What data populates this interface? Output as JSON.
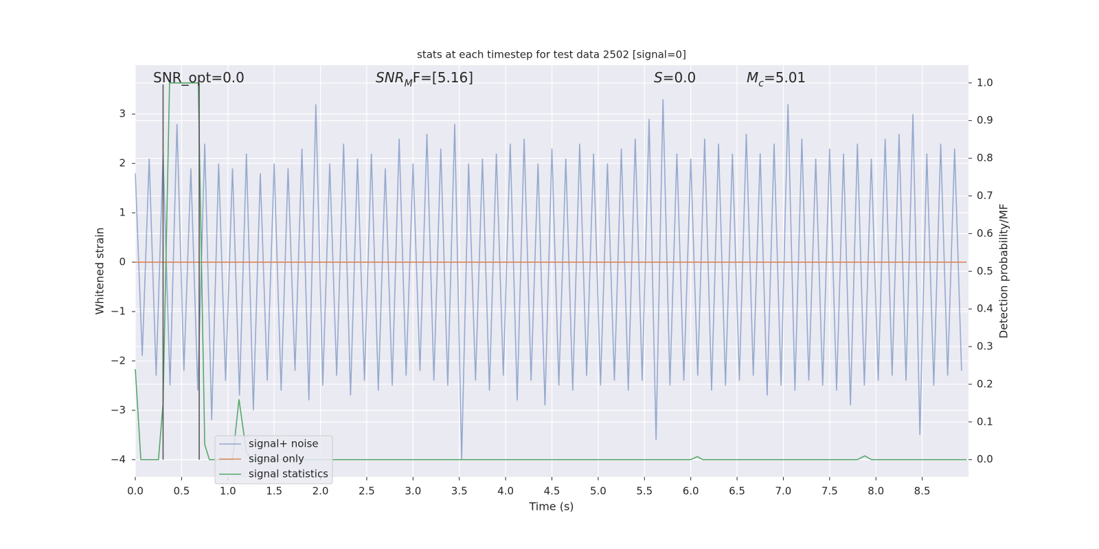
{
  "chart_data": {
    "type": "line",
    "title": "stats at each timestep for test data 2502 [signal=0]",
    "xlabel": "Time (s)",
    "ylabel": "Whitened strain",
    "y2label": "Detection probability/MF",
    "xlim": [
      0,
      9.0
    ],
    "ylim": [
      -4.35,
      3.99
    ],
    "y2lim": [
      -0.046,
      1.047
    ],
    "xticks": [
      {
        "value": 0,
        "label": "0.0"
      },
      {
        "value": 0.5,
        "label": "0.5"
      },
      {
        "value": 1,
        "label": "1.0"
      },
      {
        "value": 1.5,
        "label": "1.5"
      },
      {
        "value": 2,
        "label": "2.0"
      },
      {
        "value": 2.5,
        "label": "2.5"
      },
      {
        "value": 3,
        "label": "3.0"
      },
      {
        "value": 3.5,
        "label": "3.5"
      },
      {
        "value": 4,
        "label": "4.0"
      },
      {
        "value": 4.5,
        "label": "4.5"
      },
      {
        "value": 5,
        "label": "5.0"
      },
      {
        "value": 5.5,
        "label": "5.5"
      },
      {
        "value": 6,
        "label": "6.0"
      },
      {
        "value": 6.5,
        "label": "6.5"
      },
      {
        "value": 7,
        "label": "7.0"
      },
      {
        "value": 7.5,
        "label": "7.5"
      },
      {
        "value": 8,
        "label": "8.0"
      },
      {
        "value": 8.5,
        "label": "8.5"
      }
    ],
    "yticks": [
      {
        "value": -4,
        "label": "−4"
      },
      {
        "value": -3,
        "label": "−3"
      },
      {
        "value": -2,
        "label": "−2"
      },
      {
        "value": -1,
        "label": "−1"
      },
      0,
      1,
      2,
      3
    ],
    "y2ticks": [
      {
        "value": 0,
        "label": "0.0"
      },
      {
        "value": 0.1,
        "label": "0.1"
      },
      {
        "value": 0.2,
        "label": "0.2"
      },
      {
        "value": 0.3,
        "label": "0.3"
      },
      {
        "value": 0.4,
        "label": "0.4"
      },
      {
        "value": 0.5,
        "label": "0.5"
      },
      {
        "value": 0.6,
        "label": "0.6"
      },
      {
        "value": 0.7,
        "label": "0.7"
      },
      {
        "value": 0.8,
        "label": "0.8"
      },
      {
        "value": 0.9,
        "label": "0.9"
      },
      {
        "value": 1.0,
        "label": "1.0"
      }
    ],
    "grid": true,
    "background": "#eaeaf2",
    "legend": "lower left",
    "series": [
      {
        "name": "signal+ noise",
        "color": "#4c72b0",
        "opacity": 0.55,
        "x": [
          0,
          0.075,
          0.15,
          0.225,
          0.3,
          0.375,
          0.45,
          0.525,
          0.6,
          0.675,
          0.75,
          0.825,
          0.9,
          0.975,
          1.05,
          1.125,
          1.2,
          1.275,
          1.35,
          1.425,
          1.5,
          1.575,
          1.65,
          1.725,
          1.8,
          1.875,
          1.95,
          2.025,
          2.1,
          2.175,
          2.25,
          2.325,
          2.4,
          2.475,
          2.55,
          2.625,
          2.7,
          2.775,
          2.85,
          2.925,
          3,
          3.075,
          3.15,
          3.225,
          3.3,
          3.375,
          3.45,
          3.525,
          3.6,
          3.675,
          3.75,
          3.825,
          3.9,
          3.975,
          4.05,
          4.125,
          4.2,
          4.275,
          4.35,
          4.425,
          4.5,
          4.575,
          4.65,
          4.725,
          4.8,
          4.875,
          4.95,
          5.025,
          5.1,
          5.175,
          5.25,
          5.325,
          5.4,
          5.475,
          5.55,
          5.625,
          5.7,
          5.775,
          5.85,
          5.925,
          6,
          6.075,
          6.15,
          6.225,
          6.3,
          6.375,
          6.45,
          6.525,
          6.6,
          6.675,
          6.75,
          6.825,
          6.9,
          6.975,
          7.05,
          7.125,
          7.2,
          7.275,
          7.35,
          7.425,
          7.5,
          7.575,
          7.65,
          7.725,
          7.8,
          7.875,
          7.95,
          8.025,
          8.1,
          8.175,
          8.25,
          8.325,
          8.4,
          8.475,
          8.55,
          8.625,
          8.7,
          8.775,
          8.85,
          8.925
        ],
        "values": [
          1.8,
          -1.9,
          2.1,
          -2.3,
          2.2,
          -2.5,
          2.8,
          -2.2,
          1.9,
          -2.6,
          2.4,
          -3.2,
          2.0,
          -2.4,
          1.9,
          -2.7,
          2.2,
          -3.0,
          1.8,
          -2.4,
          2.0,
          -2.6,
          1.9,
          -2.2,
          2.3,
          -2.8,
          3.2,
          -2.5,
          2.0,
          -2.3,
          2.4,
          -2.7,
          2.1,
          -2.4,
          2.2,
          -2.6,
          1.9,
          -2.5,
          2.5,
          -2.3,
          2.0,
          -2.2,
          2.6,
          -2.4,
          2.3,
          -2.5,
          2.8,
          -4.0,
          2.0,
          -2.4,
          2.1,
          -2.6,
          2.2,
          -2.3,
          2.4,
          -2.8,
          2.5,
          -2.4,
          2.0,
          -2.9,
          2.3,
          -2.5,
          2.1,
          -2.6,
          2.4,
          -2.3,
          2.2,
          -2.5,
          2.0,
          -2.4,
          2.3,
          -2.6,
          2.5,
          -2.4,
          2.9,
          -3.6,
          3.3,
          -2.5,
          2.2,
          -2.4,
          2.1,
          -2.3,
          2.5,
          -2.6,
          2.4,
          -2.5,
          2.2,
          -2.4,
          2.6,
          -2.3,
          2.2,
          -2.7,
          2.4,
          -2.5,
          3.2,
          -2.6,
          2.5,
          -2.4,
          2.1,
          -2.5,
          2.3,
          -2.6,
          2.2,
          -2.9,
          2.4,
          -2.5,
          2.1,
          -2.4,
          2.5,
          -2.3,
          2.6,
          -2.4,
          3.0,
          -3.5,
          2.2,
          -2.5,
          2.4,
          -2.3,
          2.3,
          -2.2
        ]
      },
      {
        "name": "signal only",
        "color": "#dd8452",
        "x": [
          0,
          8.98
        ],
        "values": [
          0,
          0
        ]
      },
      {
        "name": "signal statistics",
        "color": "#55a868",
        "axis": "y2",
        "x": [
          0,
          0.06,
          0.25,
          0.3,
          0.37,
          0.68,
          0.75,
          0.8,
          1.05,
          1.12,
          1.2,
          1.25,
          6.0,
          6.07,
          6.13,
          7.8,
          7.88,
          7.95,
          8.98
        ],
        "values": [
          0.24,
          0.0,
          0.0,
          0.15,
          1.0,
          1.0,
          0.04,
          0.0,
          0.0,
          0.16,
          0.02,
          0.0,
          0.0,
          0.008,
          0.0,
          0.0,
          0.01,
          0.0,
          0.0
        ]
      }
    ],
    "vlines": {
      "x": [
        0.3,
        0.69
      ],
      "ymin": -4,
      "ymax": 3.6,
      "color": "#555555"
    },
    "annotations": [
      [
        {
          "text": "SNR_opt=0.0",
          "style": "normal"
        }
      ],
      [
        {
          "text": "SNR",
          "style": "italic"
        },
        {
          "text": "M",
          "style": "italic-sub"
        },
        {
          "text": "F=[5.16]",
          "style": "mixed"
        }
      ],
      [
        {
          "text": "S",
          "style": "italic"
        },
        {
          "text": "=0.0",
          "style": "normal"
        }
      ],
      [
        {
          "text": "M",
          "style": "italic"
        },
        {
          "text": "c",
          "style": "italic-sub"
        },
        {
          "text": "=5.01",
          "style": "normal"
        }
      ]
    ]
  }
}
